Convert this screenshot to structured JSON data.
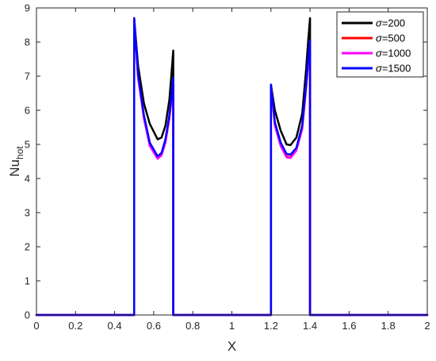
{
  "chart_data": {
    "type": "line",
    "xlabel": "X",
    "ylabel": "Nu",
    "ylabel_sub": "hot",
    "xlim": [
      0,
      2
    ],
    "ylim": [
      0,
      9
    ],
    "xticks": [
      "0",
      "0.2",
      "0.4",
      "0.6",
      "0.8",
      "1",
      "1.2",
      "1.4",
      "1.6",
      "1.8",
      "2"
    ],
    "yticks": [
      "0",
      "1",
      "2",
      "3",
      "4",
      "5",
      "6",
      "7",
      "8",
      "9"
    ],
    "grid": false,
    "legend_position": "top-right",
    "series": [
      {
        "name": "σ=200",
        "sigma": "200",
        "color": "#000000",
        "points": [
          [
            0,
            0
          ],
          [
            0.5,
            0
          ],
          [
            0.5,
            8.7
          ],
          [
            0.52,
            7.3
          ],
          [
            0.55,
            6.2
          ],
          [
            0.58,
            5.6
          ],
          [
            0.62,
            5.15
          ],
          [
            0.64,
            5.2
          ],
          [
            0.66,
            5.55
          ],
          [
            0.68,
            6.3
          ],
          [
            0.69,
            7.0
          ],
          [
            0.7,
            7.75
          ],
          [
            0.7,
            0
          ],
          [
            1.2,
            0
          ],
          [
            1.2,
            6.75
          ],
          [
            1.22,
            6.0
          ],
          [
            1.25,
            5.4
          ],
          [
            1.28,
            5.0
          ],
          [
            1.3,
            4.98
          ],
          [
            1.33,
            5.2
          ],
          [
            1.36,
            5.9
          ],
          [
            1.38,
            7.2
          ],
          [
            1.39,
            8.0
          ],
          [
            1.4,
            8.7
          ],
          [
            1.4,
            0
          ],
          [
            2,
            0
          ]
        ]
      },
      {
        "name": "σ=500",
        "sigma": "500",
        "color": "#ff0000",
        "points": [
          [
            0,
            0
          ],
          [
            0.5,
            0
          ],
          [
            0.5,
            8.7
          ],
          [
            0.52,
            7.0
          ],
          [
            0.55,
            5.8
          ],
          [
            0.58,
            5.0
          ],
          [
            0.62,
            4.6
          ],
          [
            0.64,
            4.7
          ],
          [
            0.66,
            5.1
          ],
          [
            0.68,
            5.8
          ],
          [
            0.69,
            6.3
          ],
          [
            0.7,
            6.9
          ],
          [
            0.7,
            0
          ],
          [
            1.2,
            0
          ],
          [
            1.2,
            6.75
          ],
          [
            1.22,
            5.6
          ],
          [
            1.25,
            5.0
          ],
          [
            1.28,
            4.65
          ],
          [
            1.3,
            4.62
          ],
          [
            1.33,
            4.85
          ],
          [
            1.36,
            5.5
          ],
          [
            1.38,
            6.7
          ],
          [
            1.39,
            7.4
          ],
          [
            1.4,
            8.0
          ],
          [
            1.4,
            0
          ],
          [
            2,
            0
          ]
        ]
      },
      {
        "name": "σ=1000",
        "sigma": "1000",
        "color": "#ff00ff",
        "points": [
          [
            0,
            0
          ],
          [
            0.5,
            0
          ],
          [
            0.5,
            8.7
          ],
          [
            0.52,
            6.95
          ],
          [
            0.55,
            5.75
          ],
          [
            0.58,
            4.95
          ],
          [
            0.62,
            4.58
          ],
          [
            0.64,
            4.68
          ],
          [
            0.66,
            5.05
          ],
          [
            0.68,
            5.75
          ],
          [
            0.69,
            6.25
          ],
          [
            0.7,
            6.85
          ],
          [
            0.7,
            0
          ],
          [
            1.2,
            0
          ],
          [
            1.2,
            6.75
          ],
          [
            1.22,
            5.55
          ],
          [
            1.25,
            4.95
          ],
          [
            1.28,
            4.62
          ],
          [
            1.3,
            4.6
          ],
          [
            1.33,
            4.82
          ],
          [
            1.36,
            5.45
          ],
          [
            1.38,
            6.65
          ],
          [
            1.39,
            7.35
          ],
          [
            1.4,
            7.95
          ],
          [
            1.4,
            0
          ],
          [
            2,
            0
          ]
        ]
      },
      {
        "name": "σ=1500",
        "sigma": "1500",
        "color": "#0000ff",
        "points": [
          [
            0,
            0
          ],
          [
            0.5,
            0
          ],
          [
            0.5,
            8.7
          ],
          [
            0.52,
            7.05
          ],
          [
            0.55,
            5.85
          ],
          [
            0.58,
            5.05
          ],
          [
            0.62,
            4.65
          ],
          [
            0.64,
            4.75
          ],
          [
            0.66,
            5.15
          ],
          [
            0.68,
            5.85
          ],
          [
            0.69,
            6.35
          ],
          [
            0.7,
            6.95
          ],
          [
            0.7,
            0
          ],
          [
            1.2,
            0
          ],
          [
            1.2,
            6.75
          ],
          [
            1.22,
            5.65
          ],
          [
            1.25,
            5.05
          ],
          [
            1.28,
            4.72
          ],
          [
            1.3,
            4.7
          ],
          [
            1.33,
            4.9
          ],
          [
            1.36,
            5.55
          ],
          [
            1.38,
            6.75
          ],
          [
            1.39,
            7.45
          ],
          [
            1.4,
            8.05
          ],
          [
            1.4,
            0
          ],
          [
            2,
            0
          ]
        ]
      }
    ]
  }
}
